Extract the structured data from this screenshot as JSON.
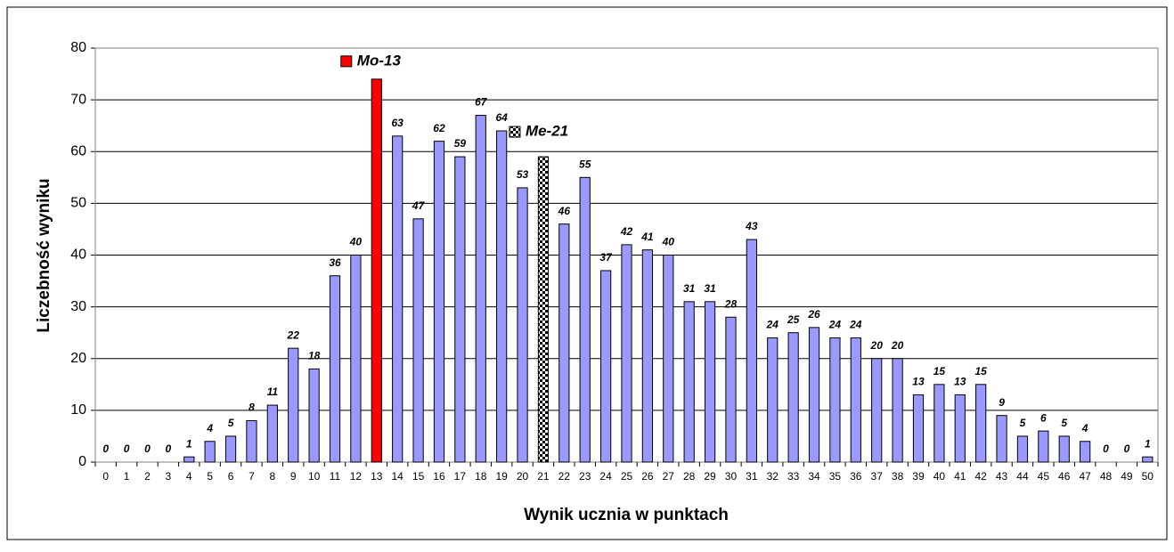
{
  "chart_data": {
    "type": "bar",
    "x_label": "Wynik ucznia w punktach",
    "y_label": "Liczebność wyniku",
    "categories": [
      "0",
      "1",
      "2",
      "3",
      "4",
      "5",
      "6",
      "7",
      "8",
      "9",
      "10",
      "11",
      "12",
      "13",
      "14",
      "15",
      "16",
      "17",
      "18",
      "19",
      "20",
      "21",
      "22",
      "23",
      "24",
      "25",
      "26",
      "27",
      "28",
      "29",
      "30",
      "31",
      "32",
      "33",
      "34",
      "35",
      "36",
      "37",
      "38",
      "39",
      "40",
      "41",
      "42",
      "43",
      "44",
      "45",
      "46",
      "47",
      "48",
      "49",
      "50"
    ],
    "values": [
      0,
      0,
      0,
      0,
      1,
      4,
      5,
      8,
      11,
      22,
      18,
      36,
      40,
      74,
      63,
      47,
      62,
      59,
      67,
      64,
      53,
      59,
      46,
      55,
      37,
      42,
      41,
      40,
      31,
      31,
      28,
      43,
      24,
      25,
      26,
      24,
      24,
      20,
      20,
      13,
      15,
      13,
      15,
      9,
      5,
      6,
      5,
      4,
      0,
      0,
      1
    ],
    "value_labels": [
      "0",
      "0",
      "0",
      "0",
      "1",
      "4",
      "5",
      "8",
      "11",
      "22",
      "18",
      "36",
      "40",
      null,
      "63",
      "47",
      "62",
      "59",
      "67",
      "64",
      "53",
      null,
      "46",
      "55",
      "37",
      "42",
      "41",
      "40",
      "31",
      "31",
      "28",
      "43",
      "24",
      "25",
      "26",
      "24",
      "24",
      "20",
      "20",
      "13",
      "15",
      "13",
      "15",
      "9",
      "5",
      "6",
      "5",
      "4",
      "0",
      "0",
      "1"
    ],
    "color": "#9999ff",
    "highlights": [
      {
        "index": 13,
        "label": "Mo-13",
        "color": "#ff0000"
      },
      {
        "index": 21,
        "label": "Me-21",
        "pattern": "checker"
      }
    ],
    "ylim": [
      0,
      80
    ],
    "yticks": [
      0,
      10,
      20,
      30,
      40,
      50,
      60,
      70,
      80
    ],
    "grid": true
  }
}
